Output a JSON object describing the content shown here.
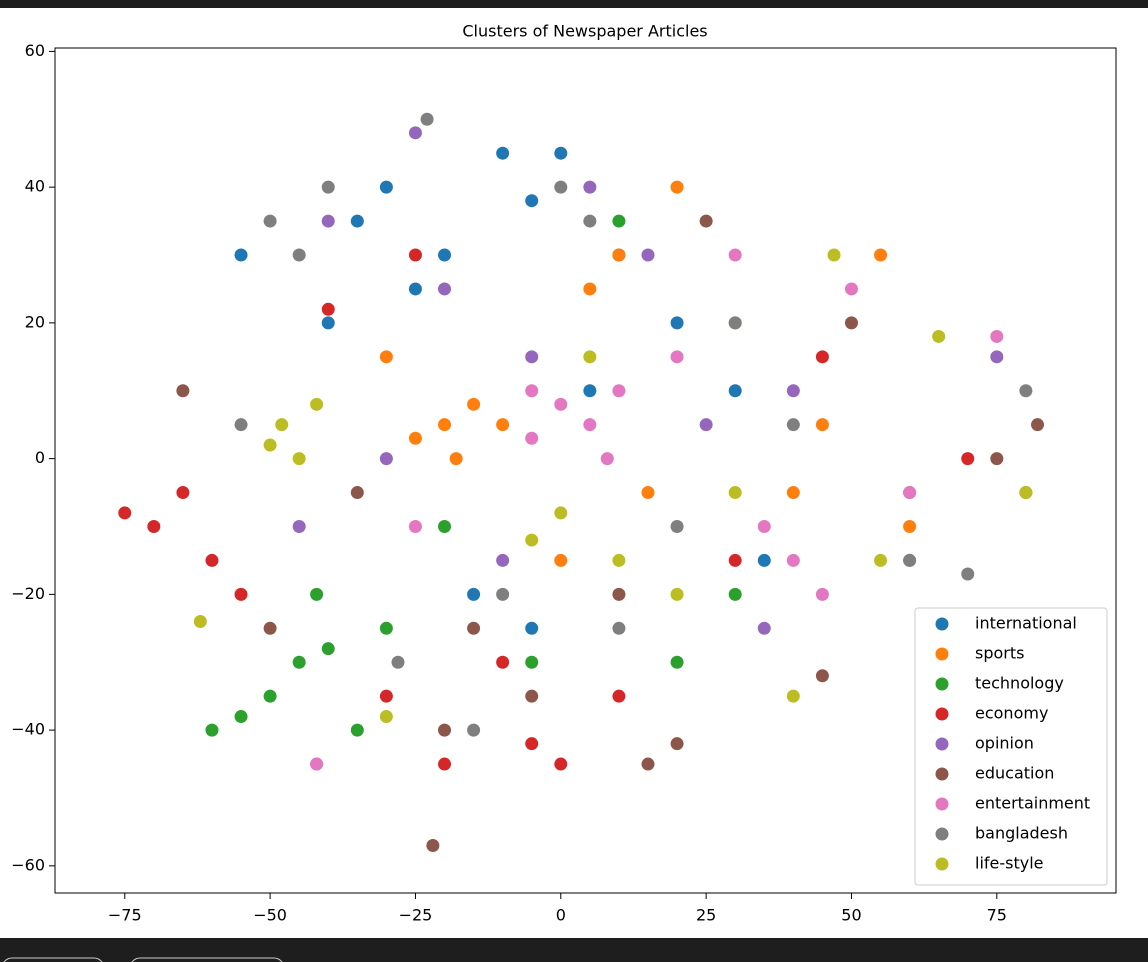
{
  "chart_data": {
    "type": "scatter",
    "title": "Clusters of Newspaper Articles",
    "xlim": [
      -87,
      95.5
    ],
    "ylim": [
      -64,
      60.5
    ],
    "xticks": [
      {
        "value": -75,
        "label": "−75"
      },
      {
        "value": -50,
        "label": "−50"
      },
      {
        "value": -25,
        "label": "−25"
      },
      0,
      25,
      50,
      75
    ],
    "yticks": [
      {
        "value": -60,
        "label": "−60"
      },
      {
        "value": -40,
        "label": "−40"
      },
      {
        "value": -20,
        "label": "−20"
      },
      0,
      20,
      40,
      60
    ],
    "grid": false,
    "legend": "lower right",
    "series": [
      {
        "name": "international",
        "color": "#1f77b4",
        "x": [
          -35,
          -30,
          -20,
          -10,
          -5,
          0,
          -25,
          -40,
          10,
          20,
          30,
          -15,
          -5,
          35,
          -55,
          5
        ],
        "values": [
          35,
          40,
          30,
          45,
          38,
          45,
          25,
          20,
          30,
          20,
          10,
          -20,
          -25,
          -15,
          30,
          10
        ]
      },
      {
        "name": "sports",
        "color": "#ff7f0e",
        "x": [
          -20,
          -15,
          -25,
          -18,
          -10,
          5,
          10,
          20,
          30,
          45,
          55,
          40,
          60,
          -30,
          15,
          0
        ],
        "values": [
          5,
          8,
          3,
          0,
          5,
          25,
          30,
          40,
          20,
          5,
          30,
          -5,
          -10,
          15,
          -5,
          -15
        ]
      },
      {
        "name": "technology",
        "color": "#2ca02c",
        "x": [
          -45,
          -55,
          -50,
          -40,
          -42,
          -35,
          -60,
          -5,
          -30,
          20,
          30,
          60,
          -20,
          10
        ],
        "values": [
          -30,
          -38,
          -35,
          -28,
          -20,
          -40,
          -40,
          -30,
          -25,
          -30,
          -20,
          -5,
          -10,
          35
        ]
      },
      {
        "name": "economy",
        "color": "#d62728",
        "x": [
          -75,
          -70,
          -65,
          -60,
          -55,
          -40,
          -30,
          -5,
          0,
          -10,
          -20,
          30,
          45,
          70,
          -25,
          10
        ],
        "values": [
          -8,
          -10,
          -5,
          -15,
          -20,
          22,
          -35,
          -42,
          -45,
          -30,
          -45,
          -15,
          15,
          0,
          30,
          -35
        ]
      },
      {
        "name": "opinion",
        "color": "#9467bd",
        "x": [
          -25,
          -40,
          -20,
          -5,
          15,
          5,
          25,
          40,
          60,
          -45,
          -10,
          35,
          75,
          -30,
          -42
        ],
        "values": [
          48,
          35,
          25,
          15,
          30,
          40,
          5,
          10,
          -15,
          -10,
          -15,
          -25,
          15,
          0,
          -45
        ]
      },
      {
        "name": "education",
        "color": "#8c564b",
        "x": [
          -22,
          -20,
          -35,
          -65,
          20,
          45,
          80,
          82,
          75,
          25,
          50,
          -5,
          10,
          -50,
          15,
          -15
        ],
        "values": [
          -57,
          -40,
          -5,
          10,
          -42,
          -32,
          -5,
          5,
          0,
          35,
          20,
          -35,
          -20,
          -25,
          -45,
          -25
        ]
      },
      {
        "name": "entertainment",
        "color": "#e377c2",
        "x": [
          5,
          0,
          8,
          10,
          -5,
          35,
          40,
          45,
          -25,
          20,
          75,
          -42,
          30,
          60,
          -5,
          50
        ],
        "values": [
          5,
          8,
          0,
          10,
          3,
          -10,
          -15,
          -20,
          -10,
          15,
          18,
          -45,
          30,
          -5,
          10,
          25
        ]
      },
      {
        "name": "bangladesh",
        "color": "#7f7f7f",
        "x": [
          -23,
          -50,
          -45,
          -40,
          0,
          5,
          30,
          40,
          60,
          -15,
          -10,
          10,
          -28,
          70,
          80,
          20,
          -55
        ],
        "values": [
          50,
          35,
          30,
          40,
          40,
          35,
          20,
          5,
          -15,
          -40,
          -20,
          -25,
          -30,
          -17,
          10,
          -10,
          5
        ]
      },
      {
        "name": "life-style",
        "color": "#bcbd22",
        "x": [
          -48,
          -45,
          -42,
          -50,
          -5,
          0,
          10,
          5,
          30,
          40,
          65,
          47,
          55,
          80,
          -30,
          20,
          -62
        ],
        "values": [
          5,
          0,
          8,
          2,
          -12,
          -8,
          -15,
          15,
          -5,
          -35,
          18,
          30,
          -15,
          -5,
          -38,
          -20,
          -24
        ]
      }
    ]
  }
}
